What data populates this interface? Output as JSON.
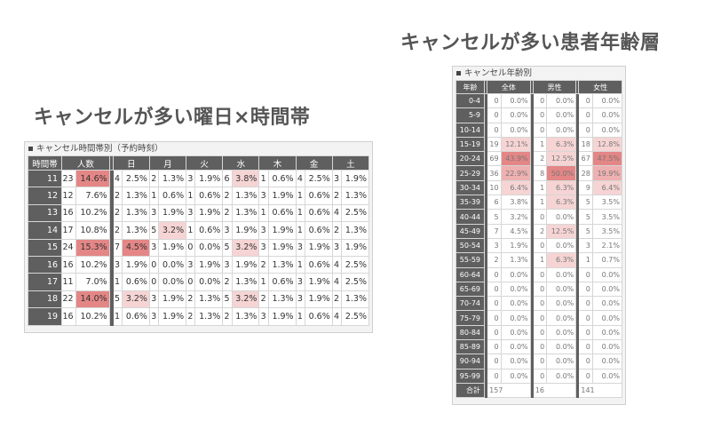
{
  "titles": {
    "left": "キャンセルが多い曜日×時間帯",
    "right": "キャンセルが多い患者年齢層"
  },
  "left_panel": {
    "heading": "キャンセル時間帯別（予約時刻）",
    "columns": [
      "時間帯",
      "人数",
      "日",
      "月",
      "火",
      "水",
      "木",
      "金",
      "土"
    ],
    "rows": [
      {
        "hour": "11",
        "total": [
          "23",
          "14.6%"
        ],
        "days": [
          [
            "4",
            "2.5%"
          ],
          [
            "2",
            "1.3%"
          ],
          [
            "3",
            "1.9%"
          ],
          [
            "6",
            "3.8%"
          ],
          [
            "1",
            "0.6%"
          ],
          [
            "4",
            "2.5%"
          ],
          [
            "3",
            "1.9%"
          ]
        ]
      },
      {
        "hour": "12",
        "total": [
          "12",
          "7.6%"
        ],
        "days": [
          [
            "2",
            "1.3%"
          ],
          [
            "1",
            "0.6%"
          ],
          [
            "1",
            "0.6%"
          ],
          [
            "2",
            "1.3%"
          ],
          [
            "3",
            "1.9%"
          ],
          [
            "1",
            "0.6%"
          ],
          [
            "2",
            "1.3%"
          ]
        ]
      },
      {
        "hour": "13",
        "total": [
          "16",
          "10.2%"
        ],
        "days": [
          [
            "2",
            "1.3%"
          ],
          [
            "3",
            "1.9%"
          ],
          [
            "3",
            "1.9%"
          ],
          [
            "2",
            "1.3%"
          ],
          [
            "1",
            "0.6%"
          ],
          [
            "1",
            "0.6%"
          ],
          [
            "4",
            "2.5%"
          ]
        ]
      },
      {
        "hour": "14",
        "total": [
          "17",
          "10.8%"
        ],
        "days": [
          [
            "2",
            "1.3%"
          ],
          [
            "5",
            "3.2%"
          ],
          [
            "1",
            "0.6%"
          ],
          [
            "3",
            "1.9%"
          ],
          [
            "3",
            "1.9%"
          ],
          [
            "1",
            "0.6%"
          ],
          [
            "2",
            "1.3%"
          ]
        ]
      },
      {
        "hour": "15",
        "total": [
          "24",
          "15.3%"
        ],
        "days": [
          [
            "7",
            "4.5%"
          ],
          [
            "3",
            "1.9%"
          ],
          [
            "0",
            "0.0%"
          ],
          [
            "5",
            "3.2%"
          ],
          [
            "3",
            "1.9%"
          ],
          [
            "3",
            "1.9%"
          ],
          [
            "3",
            "1.9%"
          ]
        ]
      },
      {
        "hour": "16",
        "total": [
          "16",
          "10.2%"
        ],
        "days": [
          [
            "3",
            "1.9%"
          ],
          [
            "0",
            "0.0%"
          ],
          [
            "3",
            "1.9%"
          ],
          [
            "3",
            "1.9%"
          ],
          [
            "2",
            "1.3%"
          ],
          [
            "1",
            "0.6%"
          ],
          [
            "4",
            "2.5%"
          ]
        ]
      },
      {
        "hour": "17",
        "total": [
          "11",
          "7.0%"
        ],
        "days": [
          [
            "1",
            "0.6%"
          ],
          [
            "0",
            "0.0%"
          ],
          [
            "0",
            "0.0%"
          ],
          [
            "2",
            "1.3%"
          ],
          [
            "1",
            "0.6%"
          ],
          [
            "3",
            "1.9%"
          ],
          [
            "4",
            "2.5%"
          ]
        ]
      },
      {
        "hour": "18",
        "total": [
          "22",
          "14.0%"
        ],
        "days": [
          [
            "5",
            "3.2%"
          ],
          [
            "3",
            "1.9%"
          ],
          [
            "2",
            "1.3%"
          ],
          [
            "5",
            "3.2%"
          ],
          [
            "2",
            "1.3%"
          ],
          [
            "3",
            "1.9%"
          ],
          [
            "2",
            "1.3%"
          ]
        ]
      },
      {
        "hour": "19",
        "total": [
          "16",
          "10.2%"
        ],
        "days": [
          [
            "1",
            "0.6%"
          ],
          [
            "3",
            "1.9%"
          ],
          [
            "2",
            "1.3%"
          ],
          [
            "2",
            "1.3%"
          ],
          [
            "3",
            "1.9%"
          ],
          [
            "1",
            "0.6%"
          ],
          [
            "4",
            "2.5%"
          ]
        ]
      }
    ],
    "highlight_threshold_percent": {
      "light": 3.0,
      "strong": 14.0
    }
  },
  "right_panel": {
    "heading": "キャンセル年齢別",
    "columns": [
      "年齢",
      "全体",
      "男性",
      "女性"
    ],
    "rows": [
      {
        "age": "0-4",
        "all": [
          "0",
          "0.0%"
        ],
        "male": [
          "0",
          "0.0%"
        ],
        "female": [
          "0",
          "0.0%"
        ]
      },
      {
        "age": "5-9",
        "all": [
          "0",
          "0.0%"
        ],
        "male": [
          "0",
          "0.0%"
        ],
        "female": [
          "0",
          "0.0%"
        ]
      },
      {
        "age": "10-14",
        "all": [
          "0",
          "0.0%"
        ],
        "male": [
          "0",
          "0.0%"
        ],
        "female": [
          "0",
          "0.0%"
        ]
      },
      {
        "age": "15-19",
        "all": [
          "19",
          "12.1%"
        ],
        "male": [
          "1",
          "6.3%"
        ],
        "female": [
          "18",
          "12.8%"
        ]
      },
      {
        "age": "20-24",
        "all": [
          "69",
          "43.9%"
        ],
        "male": [
          "2",
          "12.5%"
        ],
        "female": [
          "67",
          "47.5%"
        ]
      },
      {
        "age": "25-29",
        "all": [
          "36",
          "22.9%"
        ],
        "male": [
          "8",
          "50.0%"
        ],
        "female": [
          "28",
          "19.9%"
        ]
      },
      {
        "age": "30-34",
        "all": [
          "10",
          "6.4%"
        ],
        "male": [
          "1",
          "6.3%"
        ],
        "female": [
          "9",
          "6.4%"
        ]
      },
      {
        "age": "35-39",
        "all": [
          "6",
          "3.8%"
        ],
        "male": [
          "1",
          "6.3%"
        ],
        "female": [
          "5",
          "3.5%"
        ]
      },
      {
        "age": "40-44",
        "all": [
          "5",
          "3.2%"
        ],
        "male": [
          "0",
          "0.0%"
        ],
        "female": [
          "5",
          "3.5%"
        ]
      },
      {
        "age": "45-49",
        "all": [
          "7",
          "4.5%"
        ],
        "male": [
          "2",
          "12.5%"
        ],
        "female": [
          "5",
          "3.5%"
        ]
      },
      {
        "age": "50-54",
        "all": [
          "3",
          "1.9%"
        ],
        "male": [
          "0",
          "0.0%"
        ],
        "female": [
          "3",
          "2.1%"
        ]
      },
      {
        "age": "55-59",
        "all": [
          "2",
          "1.3%"
        ],
        "male": [
          "1",
          "6.3%"
        ],
        "female": [
          "1",
          "0.7%"
        ]
      },
      {
        "age": "60-64",
        "all": [
          "0",
          "0.0%"
        ],
        "male": [
          "0",
          "0.0%"
        ],
        "female": [
          "0",
          "0.0%"
        ]
      },
      {
        "age": "65-69",
        "all": [
          "0",
          "0.0%"
        ],
        "male": [
          "0",
          "0.0%"
        ],
        "female": [
          "0",
          "0.0%"
        ]
      },
      {
        "age": "70-74",
        "all": [
          "0",
          "0.0%"
        ],
        "male": [
          "0",
          "0.0%"
        ],
        "female": [
          "0",
          "0.0%"
        ]
      },
      {
        "age": "75-79",
        "all": [
          "0",
          "0.0%"
        ],
        "male": [
          "0",
          "0.0%"
        ],
        "female": [
          "0",
          "0.0%"
        ]
      },
      {
        "age": "80-84",
        "all": [
          "0",
          "0.0%"
        ],
        "male": [
          "0",
          "0.0%"
        ],
        "female": [
          "0",
          "0.0%"
        ]
      },
      {
        "age": "85-89",
        "all": [
          "0",
          "0.0%"
        ],
        "male": [
          "0",
          "0.0%"
        ],
        "female": [
          "0",
          "0.0%"
        ]
      },
      {
        "age": "90-94",
        "all": [
          "0",
          "0.0%"
        ],
        "male": [
          "0",
          "0.0%"
        ],
        "female": [
          "0",
          "0.0%"
        ]
      },
      {
        "age": "95-99",
        "all": [
          "0",
          "0.0%"
        ],
        "male": [
          "0",
          "0.0%"
        ],
        "female": [
          "0",
          "0.0%"
        ]
      }
    ],
    "total": {
      "label": "合計",
      "all": "157",
      "male": "16",
      "female": "141"
    }
  },
  "colors": {
    "header_bg": "#5f5f5f",
    "highlight_light": "#f6d4d4",
    "highlight_mid": "#eeb0b0",
    "highlight_strong": "#e48686"
  }
}
